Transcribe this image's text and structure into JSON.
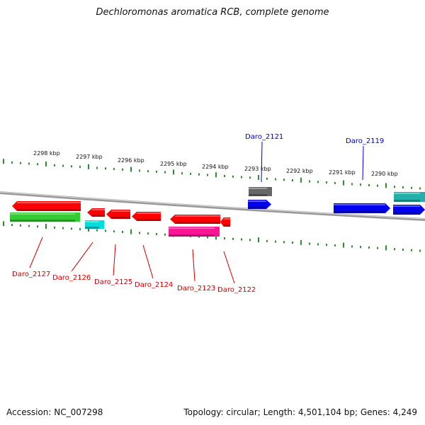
{
  "title": "Dechloromonas aromatica RCB, complete genome",
  "footer": {
    "accession": "Accession: NC_007298",
    "topology": "Topology: circular; Length: 4,501,104 bp; Genes: 4,249"
  },
  "colors": {
    "backbone": "#999999",
    "ticks": "#2e8b2e",
    "minus_label": "#cc0000",
    "plus_label": "#0000cc"
  },
  "scale_labels": [
    "2298 kbp",
    "2297 kbp",
    "2296 kbp",
    "2295 kbp",
    "2294 kbp",
    "2293 kbp",
    "2292 kbp",
    "2291 kbp",
    "2290 kbp"
  ],
  "gene_labels": [
    {
      "text": "Daro_2127",
      "strand": "minus"
    },
    {
      "text": "Daro_2126",
      "strand": "minus"
    },
    {
      "text": "Daro_2125",
      "strand": "minus"
    },
    {
      "text": "Daro_2124",
      "strand": "minus"
    },
    {
      "text": "Daro_2123",
      "strand": "minus"
    },
    {
      "text": "Daro_2122",
      "strand": "minus"
    },
    {
      "text": "Daro_2121",
      "strand": "plus"
    },
    {
      "text": "Daro_2119",
      "strand": "plus"
    }
  ],
  "genes": [
    {
      "color": "#ff0000",
      "dir": "left"
    },
    {
      "color": "#33cc33",
      "dir": "none"
    },
    {
      "color": "#ff0000",
      "dir": "left"
    },
    {
      "color": "#00dddd",
      "dir": "none"
    },
    {
      "color": "#ff0000",
      "dir": "left"
    },
    {
      "color": "#ff0000",
      "dir": "left"
    },
    {
      "color": "#ff0000",
      "dir": "left"
    },
    {
      "color": "#ff1493",
      "dir": "none"
    },
    {
      "color": "#ff0000",
      "dir": "left"
    },
    {
      "color": "#666666",
      "dir": "none"
    },
    {
      "color": "#0000ee",
      "dir": "right"
    },
    {
      "color": "#0000ee",
      "dir": "right"
    },
    {
      "color": "#0000ee",
      "dir": "right"
    },
    {
      "color": "#20b2aa",
      "dir": "none"
    }
  ]
}
